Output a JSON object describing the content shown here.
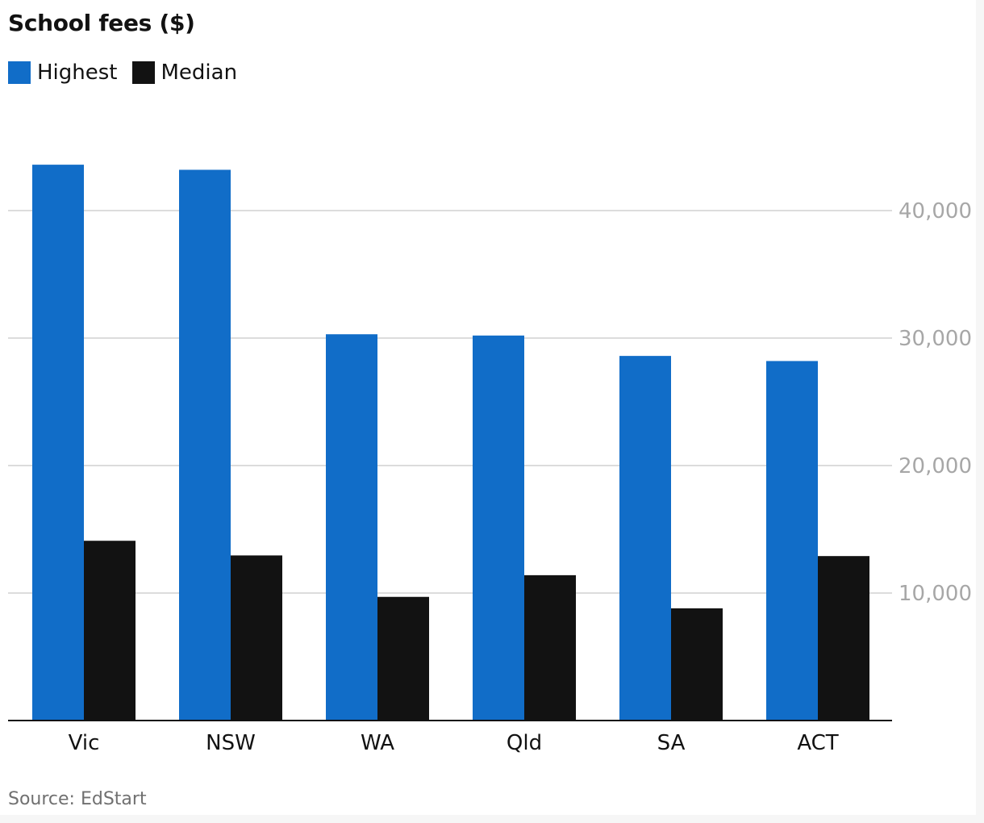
{
  "chart_data": {
    "type": "bar",
    "title": "School fees ($)",
    "categories": [
      "Vic",
      "NSW",
      "WA",
      "Qld",
      "SA",
      "ACT"
    ],
    "series": [
      {
        "name": "Highest",
        "color": "#116dc8",
        "values": [
          43600,
          43200,
          30300,
          30200,
          28600,
          28200
        ]
      },
      {
        "name": "Median",
        "color": "#121212",
        "values": [
          14100,
          12950,
          9700,
          11400,
          8800,
          12900
        ]
      }
    ],
    "yticks": [
      10000,
      20000,
      30000,
      40000
    ],
    "ytick_labels": [
      "10,000",
      "20,000",
      "30,000",
      "40,000"
    ],
    "ylim": [
      0,
      45000
    ],
    "yaxis_position": "right",
    "grid": true,
    "legend_position": "top-left",
    "source": "Source: EdStart"
  }
}
